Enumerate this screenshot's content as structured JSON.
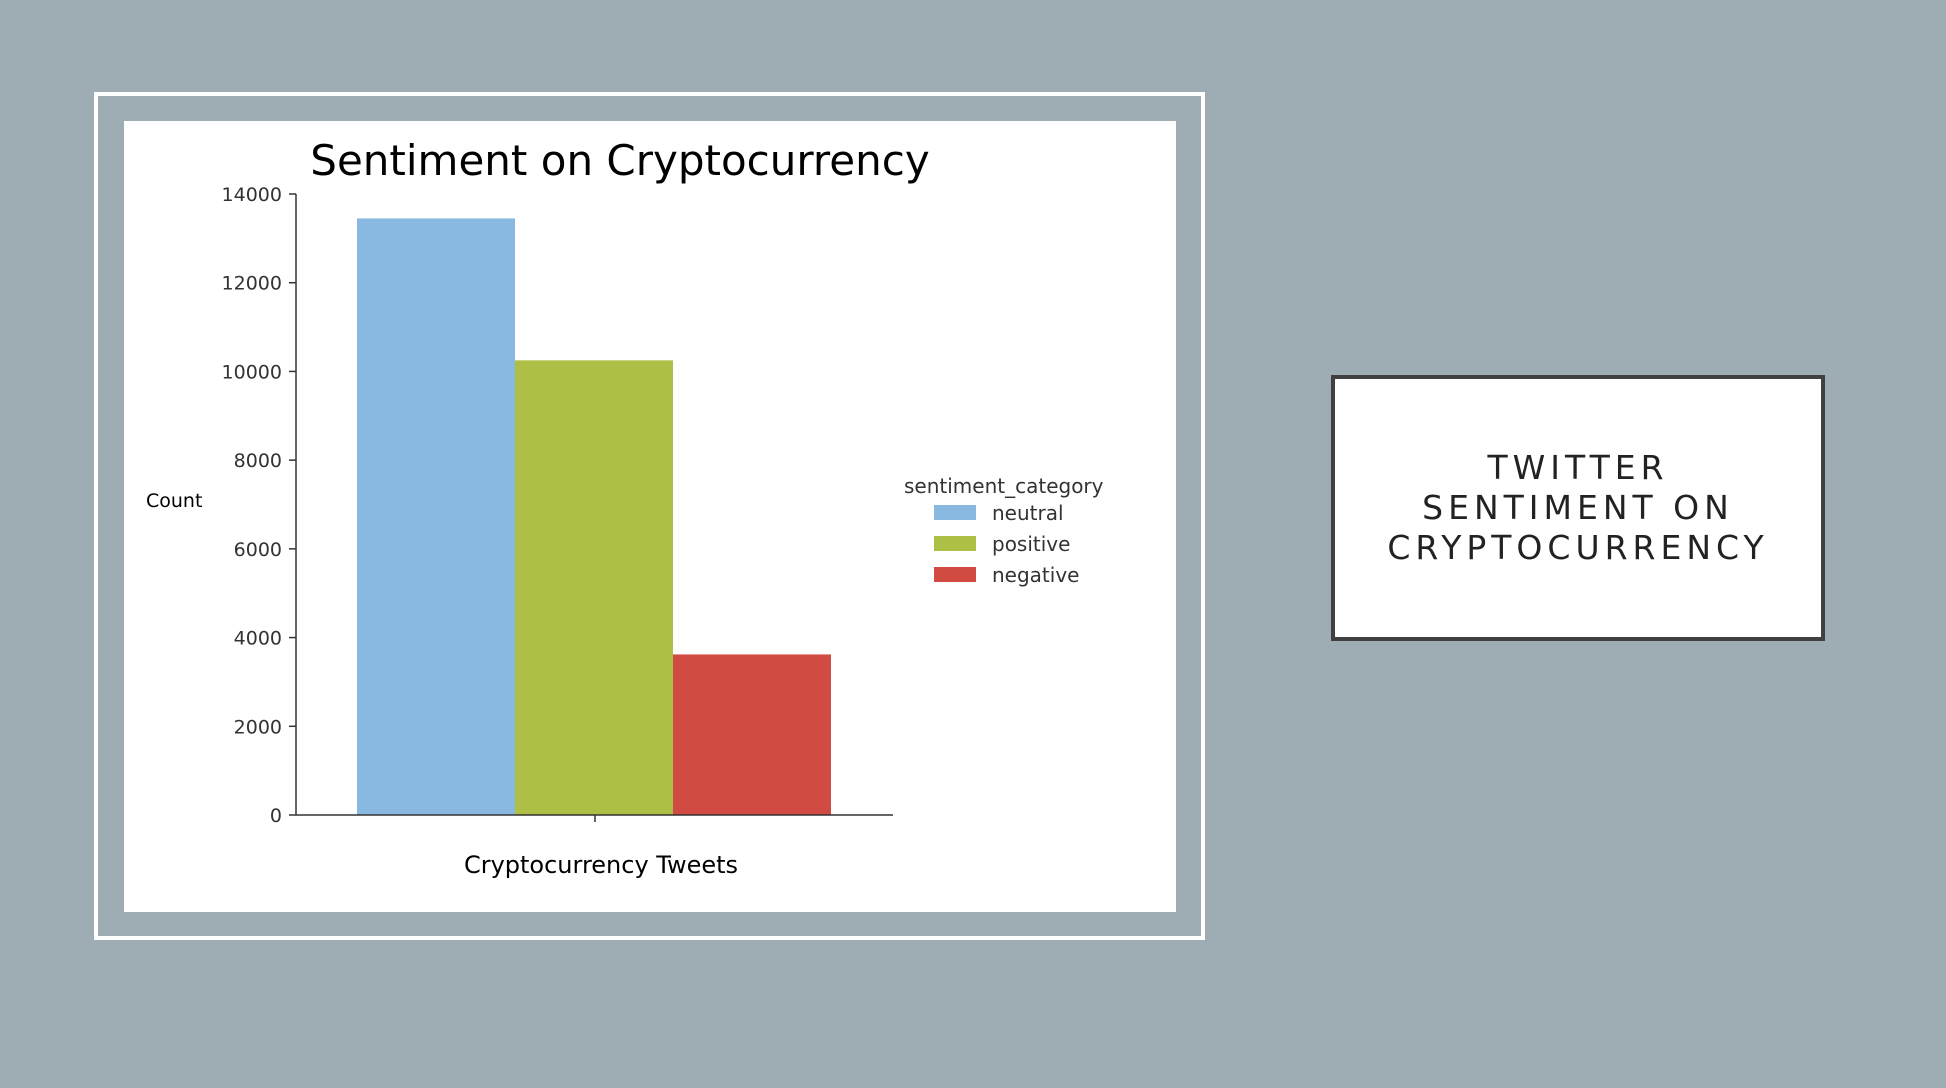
{
  "slide": {
    "title": "TWITTER SENTIMENT ON CRYPTOCURRENCY"
  },
  "chart_data": {
    "type": "bar",
    "title": "Sentiment on Cryptocurrency",
    "xlabel": "Cryptocurrency Tweets",
    "ylabel": "Count",
    "ylim": [
      0,
      14000
    ],
    "yticks": [
      0,
      2000,
      4000,
      6000,
      8000,
      10000,
      12000,
      14000
    ],
    "legend_title": "sentiment_category",
    "legend_position": "right",
    "grid": false,
    "series": [
      {
        "name": "neutral",
        "value": 13450,
        "color": "#89b9e0"
      },
      {
        "name": "positive",
        "value": 10250,
        "color": "#adbf45"
      },
      {
        "name": "negative",
        "value": 3620,
        "color": "#d24b43"
      }
    ]
  }
}
